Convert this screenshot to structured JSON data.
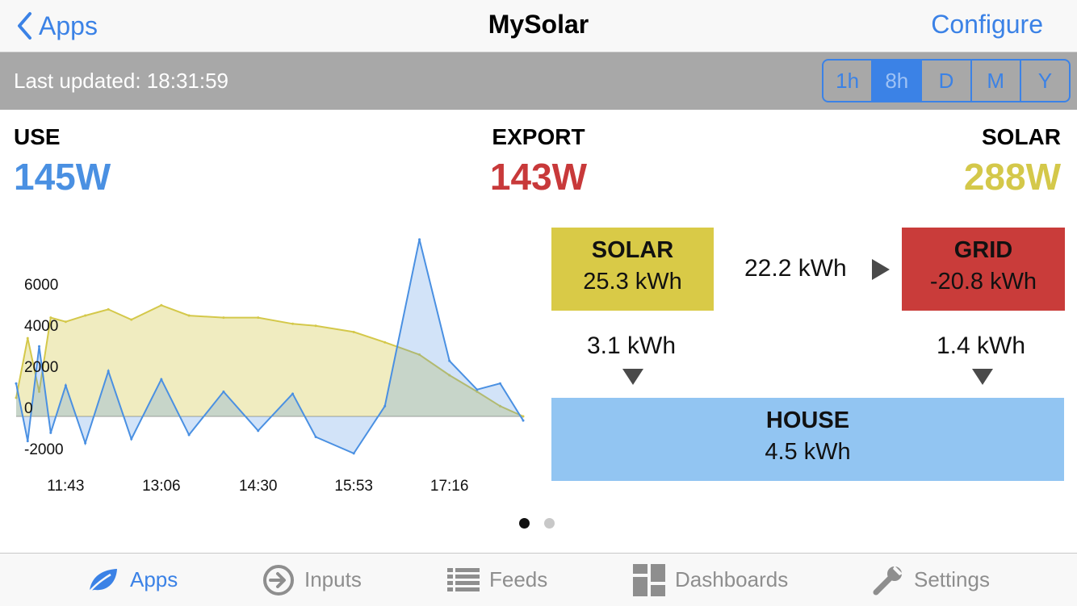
{
  "nav": {
    "back_label": "Apps",
    "title": "MySolar",
    "right_label": "Configure"
  },
  "status": {
    "last_updated": "Last updated: 18:31:59",
    "ranges": [
      {
        "label": "1h",
        "active": false
      },
      {
        "label": "8h",
        "active": true
      },
      {
        "label": "D",
        "active": false
      },
      {
        "label": "M",
        "active": false
      },
      {
        "label": "Y",
        "active": false
      }
    ]
  },
  "stats": {
    "use": {
      "label": "USE",
      "value": "145W"
    },
    "export": {
      "label": "EXPORT",
      "value": "143W"
    },
    "solar": {
      "label": "SOLAR",
      "value": "288W"
    }
  },
  "colors": {
    "use": "#4a90e2",
    "export": "#c8393a",
    "solar": "#d4c84a",
    "accent": "#3b82e6"
  },
  "chart_data": {
    "type": "area",
    "y_ticks": [
      "6000",
      "4000",
      "2000",
      "0",
      "-2000"
    ],
    "x_ticks": [
      "11:43",
      "13:06",
      "14:30",
      "15:53",
      "17:16"
    ],
    "ylim": [
      -2400,
      9000
    ],
    "series": [
      {
        "color": "#d4c84a",
        "x": [
          "11:00",
          "11:10",
          "11:20",
          "11:30",
          "11:43",
          "12:00",
          "12:20",
          "12:40",
          "13:06",
          "13:30",
          "14:00",
          "14:30",
          "15:00",
          "15:20",
          "15:53",
          "16:20",
          "16:50",
          "17:16",
          "17:40",
          "18:00",
          "18:20"
        ],
        "values": [
          900,
          3800,
          1200,
          4800,
          4600,
          4900,
          5200,
          4700,
          5400,
          4900,
          4800,
          4800,
          4500,
          4400,
          4100,
          3600,
          3000,
          2000,
          1200,
          500,
          0
        ]
      },
      {
        "color": "#4a90e2",
        "x": [
          "11:00",
          "11:10",
          "11:20",
          "11:30",
          "11:43",
          "12:00",
          "12:20",
          "12:40",
          "13:06",
          "13:30",
          "14:00",
          "14:30",
          "15:00",
          "15:20",
          "15:53",
          "16:20",
          "16:50",
          "17:16",
          "17:40",
          "18:00",
          "18:20"
        ],
        "values": [
          1600,
          -1200,
          3400,
          -800,
          1500,
          -1300,
          2200,
          -1100,
          1800,
          -900,
          1200,
          -700,
          1100,
          -1000,
          -1800,
          500,
          8600,
          2700,
          1300,
          1600,
          -200
        ]
      }
    ]
  },
  "flow": {
    "solar": {
      "label": "SOLAR",
      "value": "25.3 kWh"
    },
    "grid": {
      "label": "GRID",
      "value": "-20.8 kWh"
    },
    "house": {
      "label": "HOUSE",
      "value": "4.5 kWh"
    },
    "solar_to_grid": "22.2 kWh",
    "solar_to_house": "3.1 kWh",
    "grid_to_house": "1.4 kWh"
  },
  "pager": {
    "count": 2,
    "active": 0
  },
  "tabs": [
    {
      "label": "Apps",
      "icon": "leaf-icon",
      "active": true
    },
    {
      "label": "Inputs",
      "icon": "arrow-circle-icon",
      "active": false
    },
    {
      "label": "Feeds",
      "icon": "list-icon",
      "active": false
    },
    {
      "label": "Dashboards",
      "icon": "dashboard-icon",
      "active": false
    },
    {
      "label": "Settings",
      "icon": "wrench-icon",
      "active": false
    }
  ]
}
